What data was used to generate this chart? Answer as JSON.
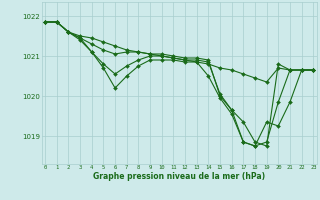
{
  "title": "Graphe pression niveau de la mer (hPa)",
  "background_color": "#ceeaea",
  "grid_color": "#a8cece",
  "line_color": "#1a6b1a",
  "ylim": [
    1018.3,
    1022.35
  ],
  "yticks": [
    1019,
    1020,
    1021,
    1022
  ],
  "xlim": [
    -0.3,
    23.3
  ],
  "series": [
    [
      1021.85,
      1021.85,
      1021.6,
      1021.5,
      1021.45,
      1021.35,
      1021.25,
      1021.15,
      1021.1,
      1021.05,
      1021.0,
      1020.95,
      1020.9,
      1020.85,
      1020.8,
      1020.7,
      1020.65,
      1020.55,
      1020.45,
      1020.35,
      1020.7,
      1020.65,
      1020.65,
      1020.65
    ],
    [
      1021.85,
      1021.85,
      1021.6,
      1021.45,
      1021.3,
      1021.15,
      1021.05,
      1021.1,
      1021.1,
      1021.05,
      1021.05,
      1021.0,
      1020.95,
      1020.95,
      1020.9,
      1020.0,
      1019.65,
      1019.35,
      1018.85,
      1018.75,
      1020.8,
      1020.65,
      1020.65,
      1020.65
    ],
    [
      1021.85,
      1021.85,
      1021.6,
      1021.45,
      1021.1,
      1020.8,
      1020.55,
      1020.75,
      1020.9,
      1021.0,
      1021.0,
      1020.95,
      1020.9,
      1020.9,
      1020.85,
      1020.05,
      1019.65,
      1018.85,
      1018.75,
      1018.85,
      1019.85,
      1020.65,
      1020.65,
      1020.65
    ],
    [
      1021.85,
      1021.85,
      1021.6,
      1021.4,
      1021.1,
      1020.7,
      1020.2,
      1020.5,
      1020.75,
      1020.9,
      1020.9,
      1020.9,
      1020.85,
      1020.85,
      1020.5,
      1019.95,
      1019.55,
      1018.85,
      1018.75,
      1019.35,
      1019.25,
      1019.85,
      1020.65,
      1020.65
    ]
  ]
}
